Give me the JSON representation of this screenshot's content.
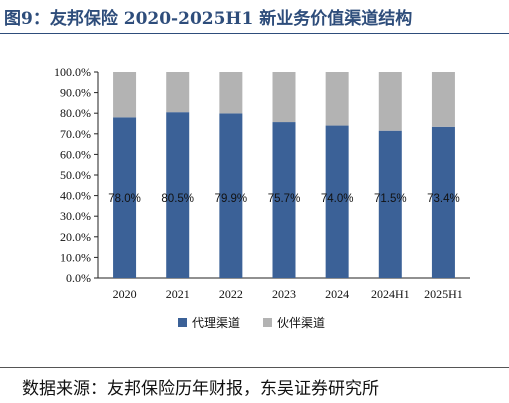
{
  "figure": {
    "title": "图9：友邦保险 2020-2025H1 新业务价值渠道结构",
    "source": "数据来源：友邦保险历年财报，东吴证券研究所"
  },
  "colors": {
    "agency": "#3b6197",
    "partner": "#b3b3b3",
    "title": "#2e4d7b"
  },
  "chart_data": {
    "type": "bar",
    "stacked": true,
    "categories": [
      "2020",
      "2021",
      "2022",
      "2023",
      "2024",
      "2024H1",
      "2025H1"
    ],
    "series": [
      {
        "name": "代理渠道",
        "values": [
          78.0,
          80.5,
          79.9,
          75.7,
          74.0,
          71.5,
          73.4
        ],
        "labels": [
          "78.0%",
          "80.5%",
          "79.9%",
          "75.7%",
          "74.0%",
          "71.5%",
          "73.4%"
        ]
      },
      {
        "name": "伙伴渠道",
        "values": [
          22.0,
          19.5,
          20.1,
          24.3,
          26.0,
          28.5,
          26.6
        ]
      }
    ],
    "ylim": [
      0,
      100
    ],
    "yticks": [
      "0.0%",
      "10.0%",
      "20.0%",
      "30.0%",
      "40.0%",
      "50.0%",
      "60.0%",
      "70.0%",
      "80.0%",
      "90.0%",
      "100.0%"
    ],
    "legend": "bottom",
    "grid": false
  }
}
